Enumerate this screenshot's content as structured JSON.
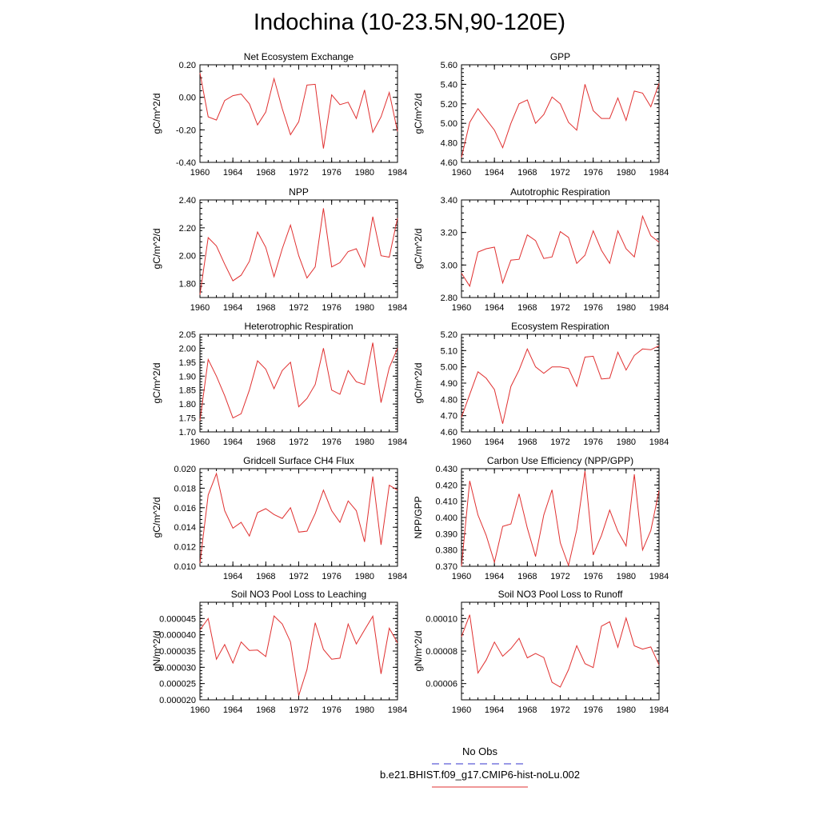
{
  "title": "Indochina (10-23.5N,90-120E)",
  "legend": {
    "items": [
      {
        "label": "No Obs",
        "color": "#3333cc",
        "style": "dashed"
      },
      {
        "label": "b.e21.BHIST.f09_g17.CMIP6-hist-noLu.002",
        "color": "#e03030",
        "style": "solid"
      }
    ]
  },
  "chart_data": [
    {
      "type": "line",
      "title": "Net Ecosystem Exchange",
      "ylabel": "gC/m^2/d",
      "xlim": [
        1960,
        1984
      ],
      "ylim": [
        -0.4,
        0.2
      ],
      "xticks": [
        1960,
        1964,
        1968,
        1972,
        1976,
        1980,
        1984
      ],
      "yticks": [
        "-0.40",
        "-0.20",
        "0.00",
        "0.20"
      ],
      "x": [
        1960,
        1961,
        1962,
        1963,
        1964,
        1965,
        1966,
        1967,
        1968,
        1969,
        1970,
        1971,
        1972,
        1973,
        1974,
        1975,
        1976,
        1977,
        1978,
        1979,
        1980,
        1981,
        1982,
        1983,
        1984
      ],
      "series": [
        {
          "values": [
            0.15,
            -0.12,
            -0.14,
            -0.02,
            0.01,
            0.02,
            -0.04,
            -0.17,
            -0.09,
            0.115,
            -0.07,
            -0.23,
            -0.15,
            0.075,
            0.08,
            -0.315,
            0.015,
            -0.045,
            -0.03,
            -0.13,
            0.045,
            -0.215,
            -0.12,
            0.03,
            -0.21
          ],
          "color": "#e03030"
        }
      ]
    },
    {
      "type": "line",
      "title": "GPP",
      "ylabel": "gC/m^2/d",
      "xlim": [
        1960,
        1984
      ],
      "ylim": [
        4.6,
        5.6
      ],
      "xticks": [
        1960,
        1964,
        1968,
        1972,
        1976,
        1980,
        1984
      ],
      "yticks": [
        "4.60",
        "4.80",
        "5.00",
        "5.20",
        "5.40",
        "5.60"
      ],
      "x": [
        1960,
        1961,
        1962,
        1963,
        1964,
        1965,
        1966,
        1967,
        1968,
        1969,
        1970,
        1971,
        1972,
        1973,
        1974,
        1975,
        1976,
        1977,
        1978,
        1979,
        1980,
        1981,
        1982,
        1983,
        1984
      ],
      "series": [
        {
          "values": [
            4.65,
            5.01,
            5.15,
            5.04,
            4.93,
            4.75,
            5.0,
            5.2,
            5.24,
            5.0,
            5.09,
            5.27,
            5.2,
            5.01,
            4.93,
            5.4,
            5.13,
            5.05,
            5.05,
            5.26,
            5.03,
            5.33,
            5.31,
            5.17,
            5.41
          ],
          "color": "#e03030"
        }
      ]
    },
    {
      "type": "line",
      "title": "NPP",
      "ylabel": "gC/m^2/d",
      "xlim": [
        1960,
        1984
      ],
      "ylim": [
        1.7,
        2.4
      ],
      "xticks": [
        1960,
        1964,
        1968,
        1972,
        1976,
        1980,
        1984
      ],
      "yticks": [
        "1.80",
        "2.00",
        "2.20",
        "2.40"
      ],
      "x": [
        1960,
        1961,
        1962,
        1963,
        1964,
        1965,
        1966,
        1967,
        1968,
        1969,
        1970,
        1971,
        1972,
        1973,
        1974,
        1975,
        1976,
        1977,
        1978,
        1979,
        1980,
        1981,
        1982,
        1983,
        1984
      ],
      "series": [
        {
          "values": [
            1.72,
            2.13,
            2.07,
            1.94,
            1.82,
            1.86,
            1.96,
            2.17,
            2.06,
            1.85,
            2.05,
            2.22,
            2.0,
            1.84,
            1.92,
            2.34,
            1.92,
            1.95,
            2.03,
            2.05,
            1.92,
            2.28,
            2.0,
            1.99,
            2.27
          ],
          "color": "#e03030"
        }
      ]
    },
    {
      "type": "line",
      "title": "Autotrophic Respiration",
      "ylabel": "gC/m^2/d",
      "xlim": [
        1960,
        1984
      ],
      "ylim": [
        2.8,
        3.4
      ],
      "xticks": [
        1960,
        1964,
        1968,
        1972,
        1976,
        1980,
        1984
      ],
      "yticks": [
        "2.80",
        "3.00",
        "3.20",
        "3.40"
      ],
      "x": [
        1960,
        1961,
        1962,
        1963,
        1964,
        1965,
        1966,
        1967,
        1968,
        1969,
        1970,
        1971,
        1972,
        1973,
        1974,
        1975,
        1976,
        1977,
        1978,
        1979,
        1980,
        1981,
        1982,
        1983,
        1984
      ],
      "series": [
        {
          "values": [
            2.95,
            2.87,
            3.08,
            3.1,
            3.11,
            2.89,
            3.03,
            3.035,
            3.185,
            3.15,
            3.04,
            3.05,
            3.205,
            3.17,
            3.01,
            3.06,
            3.21,
            3.09,
            3.01,
            3.21,
            3.1,
            3.05,
            3.3,
            3.18,
            3.14
          ],
          "color": "#e03030"
        }
      ]
    },
    {
      "type": "line",
      "title": "Heterotrophic Respiration",
      "ylabel": "gC/m^2/d",
      "xlim": [
        1960,
        1984
      ],
      "ylim": [
        1.7,
        2.05
      ],
      "xticks": [
        1960,
        1964,
        1968,
        1972,
        1976,
        1980,
        1984
      ],
      "yticks": [
        "1.70",
        "1.75",
        "1.80",
        "1.85",
        "1.90",
        "1.95",
        "2.00",
        "2.05"
      ],
      "x": [
        1960,
        1961,
        1962,
        1963,
        1964,
        1965,
        1966,
        1967,
        1968,
        1969,
        1970,
        1971,
        1972,
        1973,
        1974,
        1975,
        1976,
        1977,
        1978,
        1979,
        1980,
        1981,
        1982,
        1983,
        1984
      ],
      "series": [
        {
          "values": [
            1.74,
            1.96,
            1.9,
            1.83,
            1.75,
            1.765,
            1.85,
            1.955,
            1.925,
            1.855,
            1.92,
            1.95,
            1.79,
            1.82,
            1.87,
            2.0,
            1.85,
            1.835,
            1.92,
            1.88,
            1.87,
            2.02,
            1.805,
            1.93,
            2.0
          ],
          "color": "#e03030"
        }
      ]
    },
    {
      "type": "line",
      "title": "Ecosystem Respiration",
      "ylabel": "gC/m^2/d",
      "xlim": [
        1960,
        1984
      ],
      "ylim": [
        4.6,
        5.2
      ],
      "xticks": [
        1960,
        1964,
        1968,
        1972,
        1976,
        1980,
        1984
      ],
      "yticks": [
        "4.60",
        "4.70",
        "4.80",
        "4.90",
        "5.00",
        "5.10",
        "5.20"
      ],
      "x": [
        1960,
        1961,
        1962,
        1963,
        1964,
        1965,
        1966,
        1967,
        1968,
        1969,
        1970,
        1971,
        1972,
        1973,
        1974,
        1975,
        1976,
        1977,
        1978,
        1979,
        1980,
        1981,
        1982,
        1983,
        1984
      ],
      "series": [
        {
          "values": [
            4.69,
            4.83,
            4.97,
            4.93,
            4.86,
            4.65,
            4.88,
            4.98,
            5.11,
            5.0,
            4.96,
            5.0,
            5.0,
            4.99,
            4.88,
            5.06,
            5.065,
            4.925,
            4.93,
            5.09,
            4.98,
            5.07,
            5.11,
            5.105,
            5.13
          ],
          "color": "#e03030"
        }
      ]
    },
    {
      "type": "line",
      "title": "Gridcell Surface CH4 Flux",
      "ylabel": "gC/m^2/d",
      "xlim": [
        1960,
        1984
      ],
      "ylim": [
        0.01,
        0.02
      ],
      "xticks": [
        1964,
        1968,
        1972,
        1976,
        1980,
        1984
      ],
      "yticks": [
        "0.010",
        "0.012",
        "0.014",
        "0.016",
        "0.018",
        "0.020"
      ],
      "x": [
        1960,
        1961,
        1962,
        1963,
        1964,
        1965,
        1966,
        1967,
        1968,
        1969,
        1970,
        1971,
        1972,
        1973,
        1974,
        1975,
        1976,
        1977,
        1978,
        1979,
        1980,
        1981,
        1982,
        1983,
        1984
      ],
      "series": [
        {
          "values": [
            0.0103,
            0.0173,
            0.0195,
            0.0157,
            0.0139,
            0.0145,
            0.0131,
            0.0155,
            0.0159,
            0.0153,
            0.0149,
            0.016,
            0.0135,
            0.0136,
            0.0154,
            0.0178,
            0.0157,
            0.0145,
            0.0167,
            0.0157,
            0.0125,
            0.0192,
            0.0122,
            0.0183,
            0.0178
          ],
          "color": "#e03030"
        }
      ]
    },
    {
      "type": "line",
      "title": "Carbon Use Efficiency (NPP/GPP)",
      "ylabel": "NPP/GPP",
      "xlim": [
        1960,
        1984
      ],
      "ylim": [
        0.37,
        0.43
      ],
      "xticks": [
        1960,
        1964,
        1968,
        1972,
        1976,
        1980,
        1984
      ],
      "yticks": [
        "0.370",
        "0.380",
        "0.390",
        "0.400",
        "0.410",
        "0.420",
        "0.430"
      ],
      "x": [
        1960,
        1961,
        1962,
        1963,
        1964,
        1965,
        1966,
        1967,
        1968,
        1969,
        1970,
        1971,
        1972,
        1973,
        1974,
        1975,
        1976,
        1977,
        1978,
        1979,
        1980,
        1981,
        1982,
        1983,
        1984
      ],
      "series": [
        {
          "values": [
            0.37,
            0.4225,
            0.4015,
            0.389,
            0.3725,
            0.3945,
            0.396,
            0.4145,
            0.3935,
            0.376,
            0.4015,
            0.417,
            0.3845,
            0.3705,
            0.3925,
            0.4285,
            0.377,
            0.389,
            0.4045,
            0.3915,
            0.3825,
            0.4265,
            0.38,
            0.392,
            0.4165
          ],
          "color": "#e03030"
        }
      ]
    },
    {
      "type": "line",
      "title": "Soil NO3 Pool Loss to Leaching",
      "ylabel": "gN/m^2/d",
      "xlim": [
        1960,
        1984
      ],
      "ylim": [
        2e-05,
        5e-05
      ],
      "xticks": [
        1960,
        1964,
        1968,
        1972,
        1976,
        1980,
        1984
      ],
      "yticks": [
        "0.000020",
        "0.000025",
        "0.000030",
        "0.000035",
        "0.000040",
        "0.000045"
      ],
      "x": [
        1960,
        1961,
        1962,
        1963,
        1964,
        1965,
        1966,
        1967,
        1968,
        1969,
        1970,
        1971,
        1972,
        1973,
        1974,
        1975,
        1976,
        1977,
        1978,
        1979,
        1980,
        1981,
        1982,
        1983,
        1984
      ],
      "series": [
        {
          "values": [
            4.15e-05,
            4.5e-05,
            3.25e-05,
            3.7e-05,
            3.13e-05,
            3.78e-05,
            3.52e-05,
            3.53e-05,
            3.33e-05,
            4.58e-05,
            4.33e-05,
            3.78e-05,
            2.13e-05,
            2.93e-05,
            4.37e-05,
            3.55e-05,
            3.25e-05,
            3.28e-05,
            4.33e-05,
            3.72e-05,
            4.15e-05,
            4.57e-05,
            2.8e-05,
            4.2e-05,
            3.75e-05
          ],
          "color": "#e03030"
        }
      ]
    },
    {
      "type": "line",
      "title": "Soil NO3 Pool Loss to Runoff",
      "ylabel": "gN/m^2/d",
      "xlim": [
        1960,
        1984
      ],
      "ylim": [
        5e-05,
        0.00011
      ],
      "xticks": [
        1960,
        1964,
        1968,
        1972,
        1976,
        1980,
        1984
      ],
      "yticks": [
        "0.00006",
        "0.00008",
        "0.00010"
      ],
      "x": [
        1960,
        1961,
        1962,
        1963,
        1964,
        1965,
        1966,
        1967,
        1968,
        1969,
        1970,
        1971,
        1972,
        1973,
        1974,
        1975,
        1976,
        1977,
        1978,
        1979,
        1980,
        1981,
        1982,
        1983,
        1984
      ],
      "series": [
        {
          "values": [
            8.88e-05,
            0.0001023,
            6.65e-05,
            7.45e-05,
            8.55e-05,
            7.68e-05,
            8.15e-05,
            8.78e-05,
            7.58e-05,
            7.85e-05,
            7.6e-05,
            6.08e-05,
            5.78e-05,
            6.85e-05,
            8.33e-05,
            7.23e-05,
            6.98e-05,
            9.53e-05,
            9.8e-05,
            8.23e-05,
            0.0001003,
            8.32e-05,
            8.12e-05,
            8.25e-05,
            7.15e-05
          ],
          "color": "#e03030"
        }
      ]
    }
  ]
}
